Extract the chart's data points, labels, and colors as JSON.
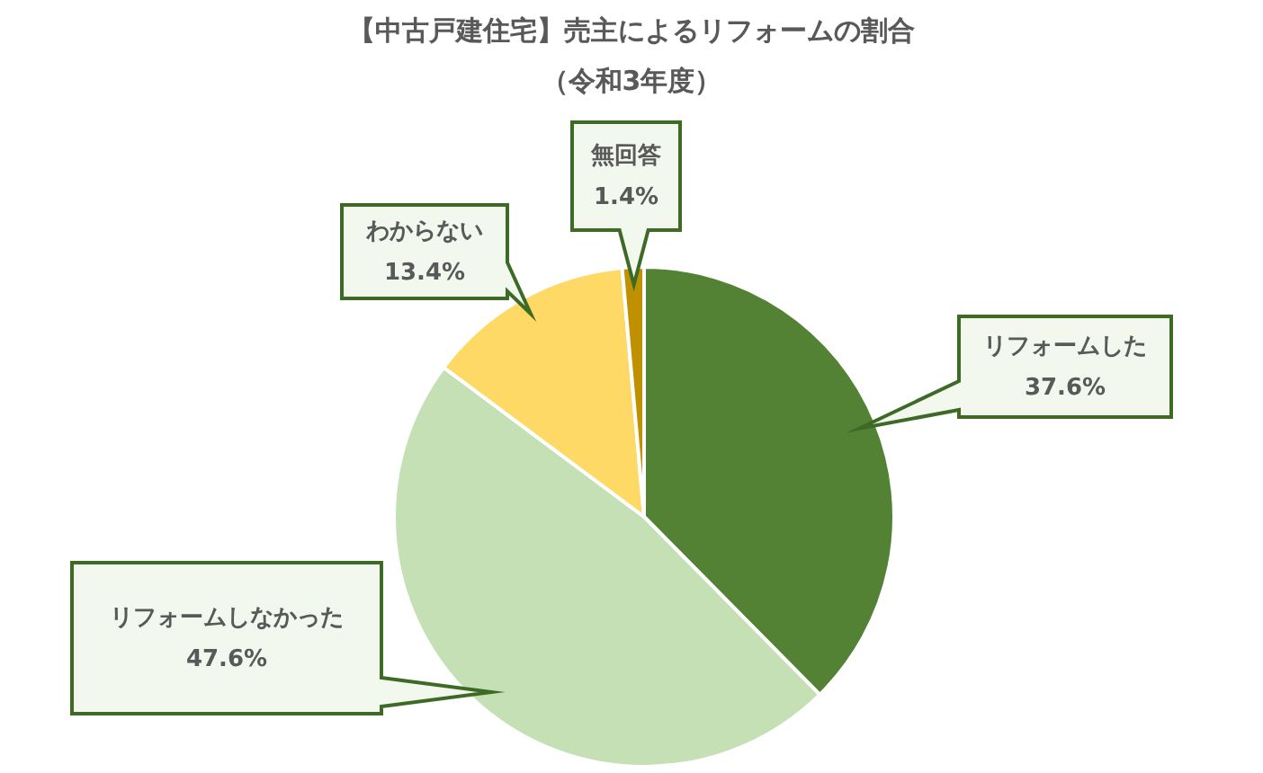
{
  "chart_data": {
    "type": "pie",
    "title": "【中古戸建住宅】売主によるリフォームの割合",
    "subtitle": "（令和3年度）",
    "categories": [
      "リフォームした",
      "リフォームしなかった",
      "わからない",
      "無回答"
    ],
    "values": [
      37.6,
      47.6,
      13.4,
      1.4
    ],
    "value_labels": [
      "37.6%",
      "47.6%",
      "13.4%",
      "1.4%"
    ],
    "colors": [
      "#548235",
      "#c5e0b4",
      "#ffd966",
      "#bf9000"
    ],
    "legend": false
  }
}
